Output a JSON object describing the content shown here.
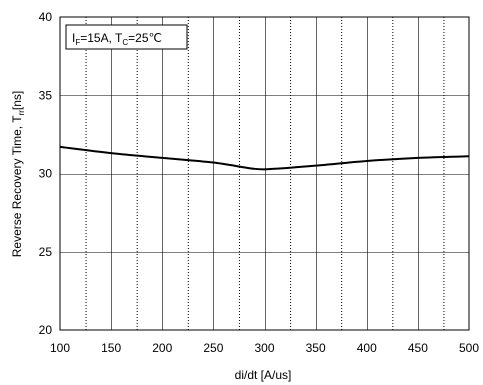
{
  "chart_data": {
    "type": "line",
    "xlabel": "di/dt [A/us]",
    "ylabel": "Reverse Recovery Time, T",
    "ylabel_sub": "rr",
    "ylabel_unit": "[ns]",
    "annotation": {
      "i_main": "I",
      "i_sub": "F",
      "i_val": "=15A, T",
      "t_sub": "C",
      "t_val": "=25℃"
    },
    "xlim": [
      100,
      500
    ],
    "ylim": [
      20,
      40
    ],
    "x_ticks": [
      100,
      150,
      200,
      250,
      300,
      350,
      400,
      450,
      500
    ],
    "x_tick_labels": [
      "100",
      "150",
      "200",
      "250",
      "300",
      "350",
      "400",
      "450",
      "500"
    ],
    "x_minor_gridlines": [
      125,
      175,
      225,
      275,
      325,
      375,
      425,
      475
    ],
    "y_ticks": [
      20,
      25,
      30,
      35,
      40
    ],
    "y_tick_labels": [
      "20",
      "25",
      "30",
      "35",
      "40"
    ],
    "grid": true,
    "series": [
      {
        "x": [
          100,
          150,
          200,
          250,
          290,
          310,
          350,
          400,
          450,
          500
        ],
        "y": [
          31.7,
          31.3,
          31.0,
          30.7,
          30.3,
          30.3,
          30.5,
          30.8,
          31.0,
          31.1
        ]
      }
    ],
    "colors": {
      "line": "#000000",
      "grid_major": "#000000",
      "grid_minor": "#000000",
      "background": "#ffffff"
    }
  }
}
